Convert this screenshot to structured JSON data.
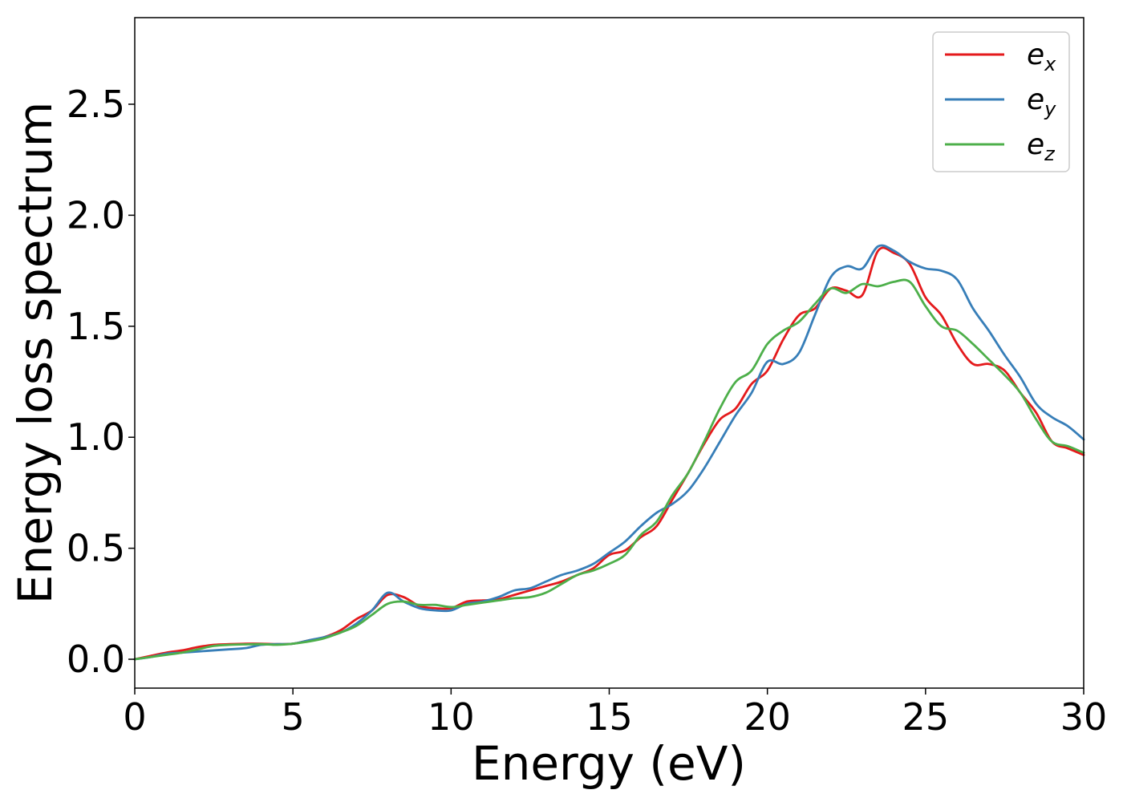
{
  "chart_data": {
    "type": "line",
    "xlabel": "Energy (eV)",
    "ylabel": "Energy loss spectrum",
    "xlim": [
      0,
      30
    ],
    "ylim": [
      -0.13,
      2.89
    ],
    "xticks": [
      0,
      5,
      10,
      15,
      20,
      25,
      30
    ],
    "xtick_labels": [
      "0",
      "5",
      "10",
      "15",
      "20",
      "25",
      "30"
    ],
    "yticks": [
      0.0,
      0.5,
      1.0,
      1.5,
      2.0,
      2.5
    ],
    "ytick_labels": [
      "0.0",
      "0.5",
      "1.0",
      "1.5",
      "2.0",
      "2.5"
    ],
    "grid": false,
    "legend_position": "top-right",
    "series": [
      {
        "name": "e",
        "subscript": "x",
        "color": "#e41a1c",
        "x": [
          0,
          0.5,
          1,
          1.5,
          2,
          2.5,
          3,
          3.5,
          4,
          4.5,
          5,
          5.5,
          6,
          6.5,
          7,
          7.5,
          8,
          8.5,
          9,
          9.5,
          10,
          10.5,
          11,
          11.5,
          12,
          12.5,
          13,
          13.5,
          14,
          14.5,
          15,
          15.5,
          16,
          16.5,
          17,
          17.5,
          18,
          18.5,
          19,
          19.5,
          20,
          20.5,
          21,
          21.5,
          22,
          22.5,
          23,
          23.5,
          24,
          24.5,
          25,
          25.5,
          26,
          26.5,
          27,
          27.5,
          28,
          28.5,
          29,
          29.5,
          30
        ],
        "y": [
          0.0,
          0.015,
          0.03,
          0.04,
          0.055,
          0.065,
          0.068,
          0.07,
          0.07,
          0.068,
          0.07,
          0.085,
          0.1,
          0.13,
          0.18,
          0.22,
          0.29,
          0.28,
          0.24,
          0.23,
          0.23,
          0.26,
          0.265,
          0.27,
          0.29,
          0.31,
          0.33,
          0.35,
          0.38,
          0.41,
          0.47,
          0.49,
          0.55,
          0.6,
          0.72,
          0.84,
          0.97,
          1.08,
          1.13,
          1.24,
          1.3,
          1.44,
          1.55,
          1.58,
          1.67,
          1.66,
          1.64,
          1.84,
          1.83,
          1.78,
          1.63,
          1.55,
          1.42,
          1.33,
          1.33,
          1.3,
          1.2,
          1.11,
          0.98,
          0.95,
          0.92
        ]
      },
      {
        "name": "e",
        "subscript": "y",
        "color": "#377eb8",
        "x": [
          0,
          0.5,
          1,
          1.5,
          2,
          2.5,
          3,
          3.5,
          4,
          4.5,
          5,
          5.5,
          6,
          6.5,
          7,
          7.5,
          8,
          8.5,
          9,
          9.5,
          10,
          10.5,
          11,
          11.5,
          12,
          12.5,
          13,
          13.5,
          14,
          14.5,
          15,
          15.5,
          16,
          16.5,
          17,
          17.5,
          18,
          18.5,
          19,
          19.5,
          20,
          20.5,
          21,
          21.5,
          22,
          22.5,
          23,
          23.5,
          24,
          24.5,
          25,
          25.5,
          26,
          26.5,
          27,
          27.5,
          28,
          28.5,
          29,
          29.5,
          30
        ],
        "y": [
          0.0,
          0.01,
          0.025,
          0.03,
          0.035,
          0.04,
          0.045,
          0.05,
          0.065,
          0.068,
          0.07,
          0.085,
          0.1,
          0.12,
          0.16,
          0.22,
          0.3,
          0.26,
          0.23,
          0.22,
          0.22,
          0.25,
          0.26,
          0.28,
          0.31,
          0.32,
          0.35,
          0.38,
          0.4,
          0.43,
          0.48,
          0.53,
          0.6,
          0.66,
          0.7,
          0.76,
          0.86,
          0.98,
          1.1,
          1.2,
          1.34,
          1.33,
          1.38,
          1.55,
          1.72,
          1.77,
          1.76,
          1.86,
          1.84,
          1.79,
          1.76,
          1.75,
          1.71,
          1.58,
          1.48,
          1.37,
          1.27,
          1.15,
          1.09,
          1.05,
          0.99
        ]
      },
      {
        "name": "e",
        "subscript": "z",
        "color": "#4daf4a",
        "x": [
          0,
          0.5,
          1,
          1.5,
          2,
          2.5,
          3,
          3.5,
          4,
          4.5,
          5,
          5.5,
          6,
          6.5,
          7,
          7.5,
          8,
          8.5,
          9,
          9.5,
          10,
          10.5,
          11,
          11.5,
          12,
          12.5,
          13,
          13.5,
          14,
          14.5,
          15,
          15.5,
          16,
          16.5,
          17,
          17.5,
          18,
          18.5,
          19,
          19.5,
          20,
          20.5,
          21,
          21.5,
          22,
          22.5,
          23,
          23.5,
          24,
          24.5,
          25,
          25.5,
          26,
          26.5,
          27,
          27.5,
          28,
          28.5,
          29,
          29.5,
          30
        ],
        "y": [
          0.0,
          0.01,
          0.02,
          0.03,
          0.045,
          0.06,
          0.065,
          0.067,
          0.068,
          0.065,
          0.07,
          0.08,
          0.095,
          0.12,
          0.15,
          0.2,
          0.25,
          0.26,
          0.245,
          0.245,
          0.235,
          0.245,
          0.255,
          0.265,
          0.275,
          0.28,
          0.3,
          0.34,
          0.38,
          0.4,
          0.43,
          0.47,
          0.56,
          0.62,
          0.74,
          0.84,
          0.98,
          1.13,
          1.25,
          1.3,
          1.42,
          1.48,
          1.52,
          1.6,
          1.67,
          1.65,
          1.69,
          1.68,
          1.7,
          1.7,
          1.59,
          1.5,
          1.48,
          1.42,
          1.35,
          1.28,
          1.2,
          1.08,
          0.98,
          0.96,
          0.93
        ]
      }
    ]
  }
}
